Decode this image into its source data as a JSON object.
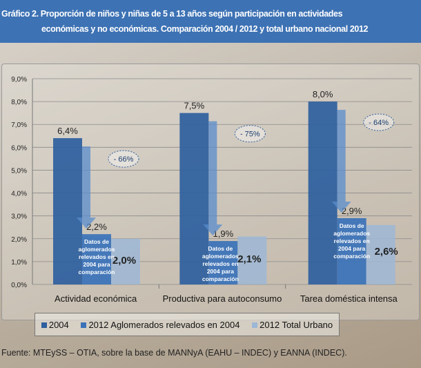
{
  "title_line1": "Gráfico 2.  Proporción de niños y niñas de 5 a 13 años según participación en actividades",
  "title_line2": "económicas y no económicas.  Comparación 2004 / 2012 y total urbano nacional 2012",
  "source": "Fuente: MTEySS – OTIA, sobre la base de MANNyA (EAHU – INDEC) y EANNA (INDEC).",
  "chart_data": {
    "type": "bar",
    "categories": [
      "Actividad económica",
      "Productiva para autoconsumo",
      "Tarea doméstica intensa"
    ],
    "series": [
      {
        "name": "2004",
        "values": [
          6.4,
          7.5,
          8.0
        ],
        "labels": [
          "6,4%",
          "7,5%",
          "8,0%"
        ],
        "color": "#2e5f9e"
      },
      {
        "name": "2012 Aglomerados relevados en 2004",
        "values": [
          2.2,
          1.9,
          2.9
        ],
        "labels": [
          "2,2%",
          "1,9%",
          "2,9%"
        ],
        "color": "#3a72b8"
      },
      {
        "name": "2012 Total Urbano",
        "values": [
          2.0,
          2.1,
          2.6
        ],
        "labels": [
          "2,0%",
          "2,1%",
          "2,6%"
        ],
        "color": "#9db7d6"
      }
    ],
    "bar_notes": [
      "Datos de aglomerados relevados en 2004 para comparación",
      "Datos de aglomerados relevados en 2004 para comparación",
      "Datos de aglomerados relevados en 2004 para comparación"
    ],
    "changes": [
      "- 66%",
      "- 75%",
      "- 64%"
    ],
    "yticks": [
      "0,0%",
      "1,0%",
      "2,0%",
      "3,0%",
      "4,0%",
      "5,0%",
      "6,0%",
      "7,0%",
      "8,0%",
      "9,0%"
    ],
    "ylim": [
      0,
      9
    ],
    "grid": true,
    "legend": "bottom"
  }
}
